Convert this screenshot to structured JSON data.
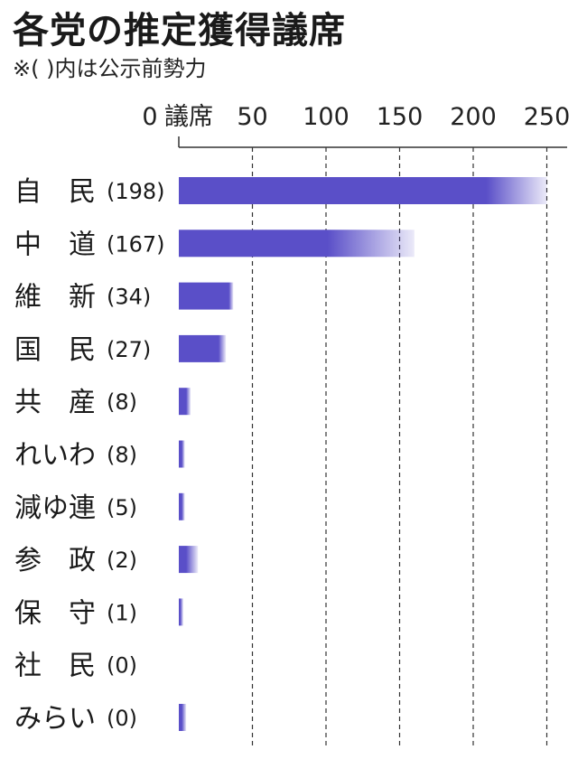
{
  "chart_data": {
    "type": "bar",
    "orientation": "horizontal",
    "title": "各党の推定獲得議席",
    "subtitle": "※( )内は公示前勢力",
    "x_unit": "議席",
    "xlim": [
      0,
      260
    ],
    "xticks": [
      0,
      50,
      100,
      150,
      200,
      250
    ],
    "tick_labels": [
      "0",
      "50",
      "100",
      "150",
      "200",
      "250"
    ],
    "grid": "dashed vertical",
    "bar_color": "#5a4fc8",
    "categories": [
      "自　民",
      "中　道",
      "維　新",
      "国　民",
      "共　産",
      "れいわ",
      "減ゆ連",
      "参　政",
      "保　守",
      "社　民",
      "みらい"
    ],
    "previous_strength": [
      "(198)",
      "(167)",
      "(34)",
      "(27)",
      "(8)",
      "(8)",
      "(5)",
      "(2)",
      "(1)",
      "(0)",
      "(0)"
    ],
    "series": [
      {
        "values_low": [
          209,
          101,
          34,
          27,
          5,
          2,
          2,
          5,
          1,
          0,
          2
        ],
        "values_high": [
          250,
          160,
          37,
          32,
          8,
          4,
          4,
          13,
          3,
          0,
          5
        ]
      }
    ]
  }
}
